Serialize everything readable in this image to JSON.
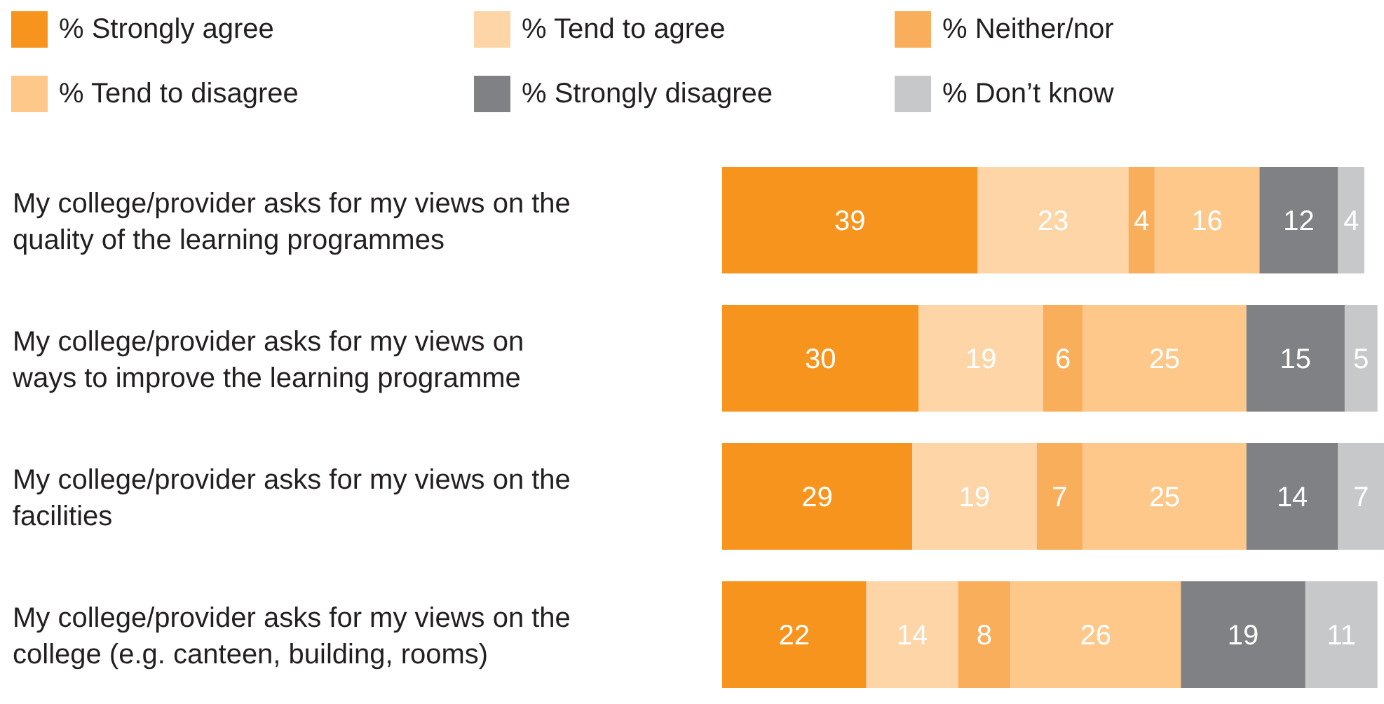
{
  "chart_data": {
    "type": "bar",
    "orientation": "horizontal",
    "stacked": true,
    "data_labels": true,
    "legend": "top left",
    "tick_labels": "y",
    "categories": [
      "My college/provider asks for my views on the quality of the learning programmes",
      "My college/provider asks for my views on ways to improve the learning programme",
      "My college/provider asks for my views on the facilities",
      "My college/provider asks for my views on the college (e.g. canteen, building, rooms)"
    ],
    "series": [
      {
        "name": "% Strongly agree",
        "color": "#f7941d",
        "values": [
          39,
          30,
          29,
          22
        ]
      },
      {
        "name": "% Tend to agree",
        "color": "#fdd5a6",
        "values": [
          23,
          19,
          19,
          14
        ]
      },
      {
        "name": "% Neither/nor",
        "color": "#f9ae5b",
        "values": [
          4,
          6,
          7,
          8
        ]
      },
      {
        "name": "% Tend to disagree",
        "color": "#fdc88a",
        "values": [
          16,
          25,
          25,
          26
        ]
      },
      {
        "name": "% Strongly disagree",
        "color": "#808184",
        "values": [
          12,
          15,
          14,
          19
        ]
      },
      {
        "name": "% Don’t know",
        "color": "#c7c8ca",
        "values": [
          4,
          5,
          7,
          11
        ]
      }
    ]
  }
}
